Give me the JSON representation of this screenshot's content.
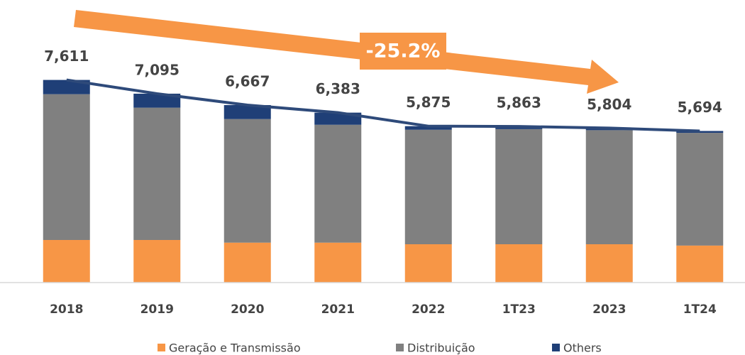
{
  "chart_data": {
    "type": "stacked_bar",
    "annotation": "-25.2%",
    "categories": [
      "2018",
      "2019",
      "2020",
      "2021",
      "2022",
      "1T23",
      "2023",
      "1T24"
    ],
    "series": [
      {
        "name": "Geração e Transmissão",
        "color": "#f79646",
        "values": [
          1600,
          1600,
          1500,
          1500,
          1440,
          1440,
          1440,
          1390
        ]
      },
      {
        "name": "Distribuição",
        "color": "#808080",
        "values": [
          5475,
          4970,
          4641,
          4427,
          4300,
          4323,
          4284,
          4234
        ]
      },
      {
        "name": "Others",
        "color": "#1f3f77",
        "values": [
          536,
          525,
          526,
          456,
          135,
          100,
          80,
          70
        ]
      }
    ],
    "totals": {
      "color": "#2e4a7a",
      "values": [
        7611,
        7095,
        6667,
        6383,
        5875,
        5863,
        5804,
        5694
      ],
      "value_labels": [
        "7,611",
        "7,095",
        "6,667",
        "6,383",
        "5,875",
        "5,863",
        "5,804",
        "5,694"
      ]
    },
    "ylim": [
      0,
      8000
    ]
  }
}
